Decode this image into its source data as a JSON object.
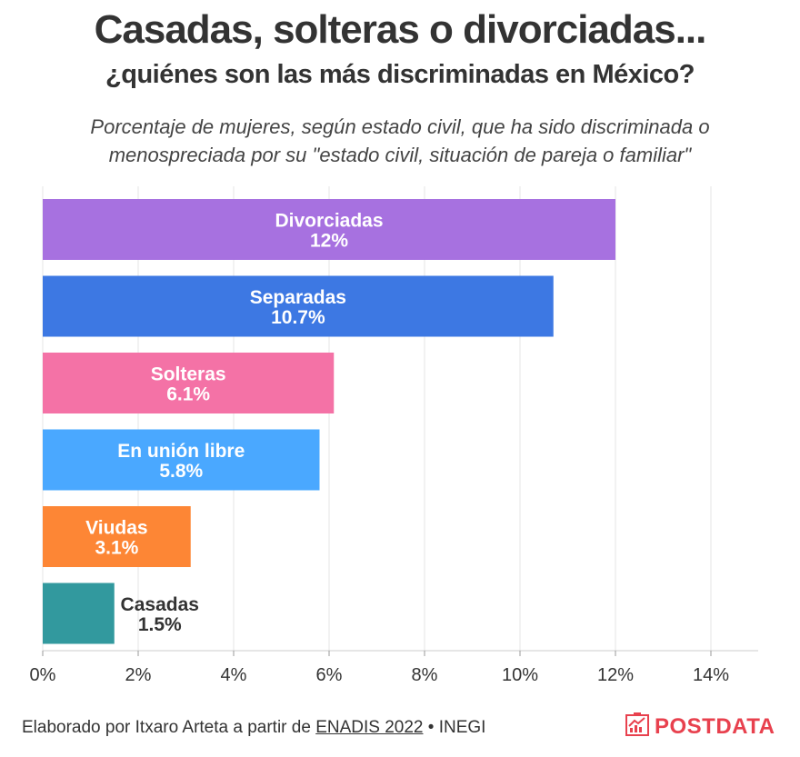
{
  "header": {
    "title": "Casadas, solteras o divorciadas...",
    "subtitle": "¿quiénes son las más discriminadas en México?",
    "caption_line1": "Porcentaje de mujeres, según estado civil, que ha sido discriminada o",
    "caption_line2": "menospreciada por su \"estado civil, situación de pareja o familiar\""
  },
  "chart_data": {
    "type": "bar",
    "orientation": "horizontal",
    "title": "Casadas, solteras o divorciadas...",
    "subtitle": "¿quiénes son las más discriminadas en México?",
    "xlabel": "",
    "ylabel": "",
    "xlim": [
      0,
      15
    ],
    "grid": true,
    "categories": [
      "Divorciadas",
      "Separadas",
      "Solteras",
      "En unión libre",
      "Viudas",
      "Casadas"
    ],
    "values": [
      12,
      10.7,
      6.1,
      5.8,
      3.1,
      1.5
    ],
    "value_labels": [
      "12%",
      "10.7%",
      "6.1%",
      "5.8%",
      "3.1%",
      "1.5%"
    ],
    "colors": [
      "#a771e0",
      "#3d78e3",
      "#f472a6",
      "#4aa8ff",
      "#fd8635",
      "#32999e"
    ],
    "ticks": [
      0,
      2,
      4,
      6,
      8,
      10,
      12,
      14
    ],
    "tick_labels": [
      "0%",
      "2%",
      "4%",
      "6%",
      "8%",
      "10%",
      "12%",
      "14%"
    ]
  },
  "footer": {
    "prefix": "Elaborado por Itxaro Arteta a partir de ",
    "source": "ENADIS 2022",
    "suffix": " • INEGI"
  },
  "logo": {
    "text": "POSTDATA",
    "icon": "chart-logo-icon"
  }
}
